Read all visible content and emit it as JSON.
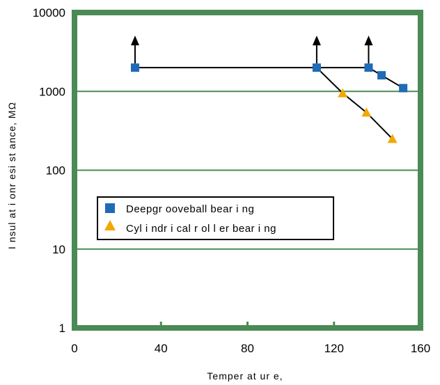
{
  "chart_data": {
    "type": "line",
    "title": "",
    "xlabel": "Temper at ur e,",
    "ylabel": "I nsul at i onr esi st ance, MΩ",
    "xlim": [
      0,
      160
    ],
    "ylim": [
      1,
      10000
    ],
    "yscale": "log",
    "x_ticks": [
      "0",
      "40",
      "80",
      "120",
      "160"
    ],
    "y_ticks": [
      "1",
      "10",
      "100",
      "1000",
      "10000"
    ],
    "grid": "horizontal",
    "frame_color": "#4a8a55",
    "legend_position": "center-left",
    "series": [
      {
        "name": "Deepgr ooveball bear i ng",
        "marker": "square",
        "color": "#1f6bb5",
        "x": [
          28,
          112,
          136,
          142,
          152
        ],
        "y": [
          2000,
          2000,
          2000,
          1600,
          1100
        ]
      },
      {
        "name": "Cyl i ndr i cal r ol l er bear i ng",
        "marker": "triangle",
        "color": "#f2a900",
        "x": [
          112,
          124,
          135,
          147
        ],
        "y": [
          2000,
          950,
          540,
          250
        ]
      }
    ],
    "annotations": [
      {
        "type": "arrow-up",
        "x": 28,
        "y": 2000
      },
      {
        "type": "arrow-up",
        "x": 112,
        "y": 2000
      },
      {
        "type": "arrow-up",
        "x": 136,
        "y": 2000
      }
    ]
  }
}
